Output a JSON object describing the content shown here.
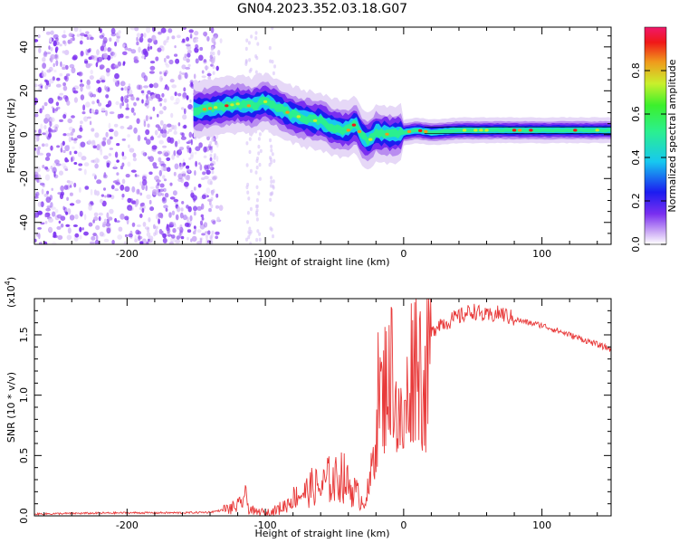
{
  "figure": {
    "title": "GN04.2023.352.03.18.G07"
  },
  "colors": {
    "snr_line": "#e83a3a",
    "spectro_palette": [
      "#ffffff",
      "#e6d8f7",
      "#b98df0",
      "#7a2ff0",
      "#1c1cf0",
      "#17c8f0",
      "#2bf08f",
      "#c9f02c",
      "#f09a1c",
      "#f01818",
      "#f0186b"
    ]
  },
  "chart_data": [
    {
      "type": "heatmap",
      "name": "spectrogram",
      "xlabel": "Height of straight line (km)",
      "ylabel": "Frequency (Hz)",
      "xlim": [
        -267,
        150
      ],
      "ylim": [
        -50,
        49
      ],
      "x_ticks": [
        -200,
        -100,
        0,
        100
      ],
      "x_tick_labels": [
        "-200",
        "-100",
        "0",
        "100"
      ],
      "y_ticks": [
        -40,
        -20,
        0,
        20,
        40
      ],
      "y_tick_labels": [
        "-40",
        "-20",
        "0",
        "20",
        "40"
      ],
      "ridge": {
        "x": [
          -150,
          -140,
          -130,
          -120,
          -110,
          -100,
          -90,
          -80,
          -70,
          -60,
          -50,
          -40,
          -35,
          -30,
          -25,
          -20,
          -10,
          0,
          10,
          20,
          40,
          60,
          80,
          100,
          120,
          150
        ],
        "freq": [
          11,
          12,
          13,
          14,
          13,
          15,
          12,
          9,
          7,
          6,
          3,
          2,
          5,
          -1,
          -3,
          1,
          0,
          1,
          2,
          1,
          2,
          2,
          2,
          2,
          2,
          2
        ]
      },
      "colorbar": {
        "label": "Normalized spectral amplitude",
        "range": [
          0.0,
          1.0
        ],
        "ticks": [
          0.0,
          0.2,
          0.4,
          0.6,
          0.8
        ],
        "tick_labels": [
          "0.0",
          "0.2",
          "0.4",
          "0.6",
          "0.8"
        ]
      }
    },
    {
      "type": "line",
      "name": "snr",
      "xlabel": "Height of straight line (km)",
      "ylabel": "SNR (10 * v/v)",
      "exponent_label": "(x10",
      "exponent_power": "4",
      "exponent_close": ")",
      "xlim": [
        -267,
        150
      ],
      "ylim": [
        0,
        18000
      ],
      "x_ticks": [
        -200,
        -100,
        0,
        100
      ],
      "x_tick_labels": [
        "-200",
        "-100",
        "0",
        "100"
      ],
      "y_ticks": [
        0,
        5000,
        10000,
        15000
      ],
      "y_tick_labels": [
        "0.0",
        "0.5",
        "1.0",
        "1.5"
      ],
      "series": [
        {
          "x": [
            -267,
            -240,
            -200,
            -160,
            -140,
            -125,
            -118,
            -115,
            -112,
            -108,
            -100,
            -95,
            -90,
            -85,
            -80,
            -75,
            -70,
            -65,
            -60,
            -55,
            -50,
            -45,
            -40,
            -35,
            -30,
            -25,
            -22,
            -20,
            -18,
            -15,
            -12,
            -10,
            -8,
            -5,
            0,
            5,
            10,
            15,
            20,
            25,
            30,
            40,
            50,
            60,
            70,
            80,
            90,
            100,
            110,
            120,
            130,
            140,
            150
          ],
          "y": [
            150,
            200,
            250,
            250,
            300,
            600,
            900,
            1800,
            700,
            300,
            250,
            300,
            600,
            900,
            1500,
            1800,
            2000,
            2500,
            2200,
            3000,
            2800,
            3500,
            2500,
            2000,
            1200,
            2000,
            5000,
            7000,
            11000,
            9000,
            13000,
            10000,
            14000,
            8000,
            7000,
            12000,
            14000,
            10000,
            15000,
            16000,
            16000,
            16500,
            17000,
            16500,
            16800,
            16300,
            16000,
            15800,
            15400,
            15000,
            14600,
            14200,
            13800
          ]
        }
      ]
    }
  ]
}
